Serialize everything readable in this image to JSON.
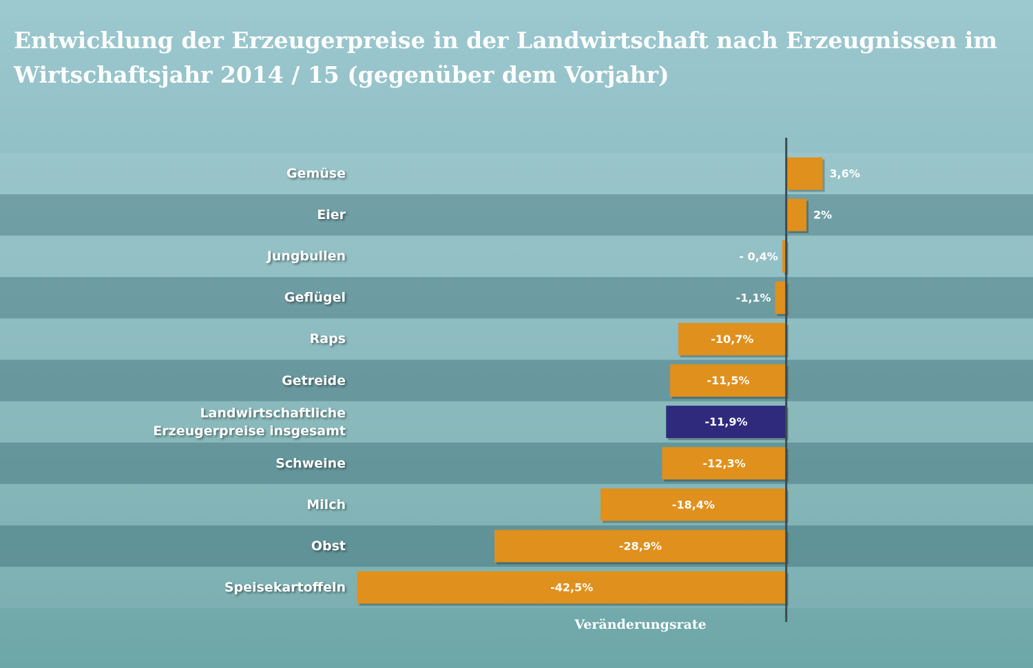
{
  "chart_data": {
    "type": "hbar",
    "title": "Entwicklung der Erzeugerpreise in der Landwirtschaft nach Erzeugnissen im Wirtschaftsjahr 2014 / 15 (gegenüber dem Vorjahr)",
    "x_label": "Veränderungsrate",
    "categories": [
      "Gemüse",
      "Eier",
      "Jungbullen",
      "Geflügel",
      "Raps",
      "Getreide",
      "Landwirtschaftliche Erzeugerpreise insgesamt",
      "Schweine",
      "Milch",
      "Obst",
      "Speisekartoffeln"
    ],
    "values": [
      3.6,
      2,
      -0.4,
      -1.1,
      -10.7,
      -11.5,
      -11.9,
      -12.3,
      -18.4,
      -28.9,
      -42.5
    ],
    "value_labels": [
      "3,6%",
      "2%",
      "- 0,4%",
      "-1,1%",
      "-10,7%",
      "-11,5%",
      "-11,9%",
      "-12,3%",
      "-18,4%",
      "-28,9%",
      "-42,5%"
    ],
    "colors": [
      "#e0901c",
      "#e0901c",
      "#e0901c",
      "#e0901c",
      "#e0901c",
      "#e0901c",
      "#2f2a7c",
      "#e0901c",
      "#e0901c",
      "#e0901c",
      "#e0901c"
    ],
    "xlim": [
      -45,
      5
    ]
  }
}
